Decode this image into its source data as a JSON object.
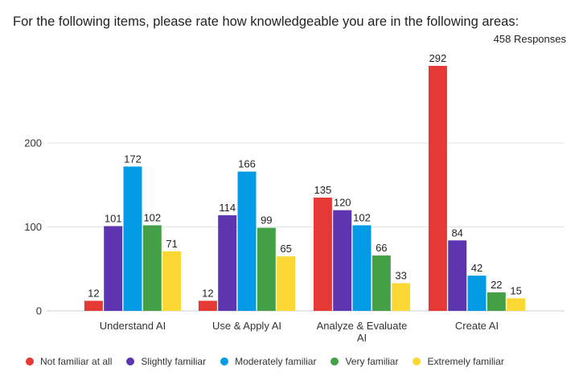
{
  "header": {
    "title": "For the following items, please rate how knowledgeable you are in the following areas:",
    "responses": "458 Responses"
  },
  "colors": {
    "not_familiar": "#e53935",
    "slightly": "#5e35b1",
    "moderately": "#039be5",
    "very": "#43a047",
    "extremely": "#fdd835"
  },
  "chart_data": {
    "type": "bar",
    "categories": [
      [
        "Understand AI"
      ],
      [
        "Use & Apply AI"
      ],
      [
        "Analyze & Evaluate",
        "AI"
      ],
      [
        "Create AI"
      ]
    ],
    "series": [
      {
        "name": "Not familiar at all",
        "color": "#e53935",
        "values": [
          12,
          12,
          135,
          292
        ]
      },
      {
        "name": "Slightly familiar",
        "color": "#5e35b1",
        "values": [
          101,
          114,
          120,
          84
        ]
      },
      {
        "name": "Moderately familiar",
        "color": "#039be5",
        "values": [
          172,
          166,
          102,
          42
        ]
      },
      {
        "name": "Very familiar",
        "color": "#43a047",
        "values": [
          102,
          99,
          66,
          22
        ]
      },
      {
        "name": "Extremely familiar",
        "color": "#fdd835",
        "values": [
          71,
          65,
          33,
          15
        ]
      }
    ],
    "yticks": [
      0,
      100,
      200
    ],
    "ylim": [
      0,
      292
    ],
    "grid": true,
    "legend": "bottom"
  }
}
